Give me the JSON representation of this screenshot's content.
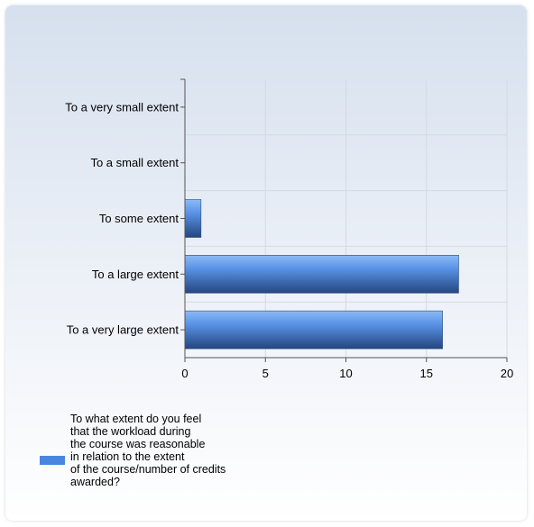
{
  "chart_data": {
    "type": "bar",
    "orientation": "horizontal",
    "categories": [
      "To a very small extent",
      "To a small extent",
      "To some extent",
      "To a large extent",
      "To a very large extent"
    ],
    "series": [
      {
        "name": "To what extent do you feel\nthat the workload during\nthe course was reasonable\nin relation to the extent\nof the course/number of credits\nawarded?",
        "values": [
          0,
          0,
          1,
          17,
          16
        ]
      }
    ],
    "xticks": [
      "0",
      "5",
      "10",
      "15",
      "20"
    ],
    "xlim": [
      0,
      20
    ],
    "grid": true,
    "legend_position": "bottom-left",
    "colors": {
      "bar_top": "#6ea4f0",
      "bar_bottom": "#2a4e8a",
      "axis": "#555555",
      "grid": "#d4dae4"
    }
  }
}
